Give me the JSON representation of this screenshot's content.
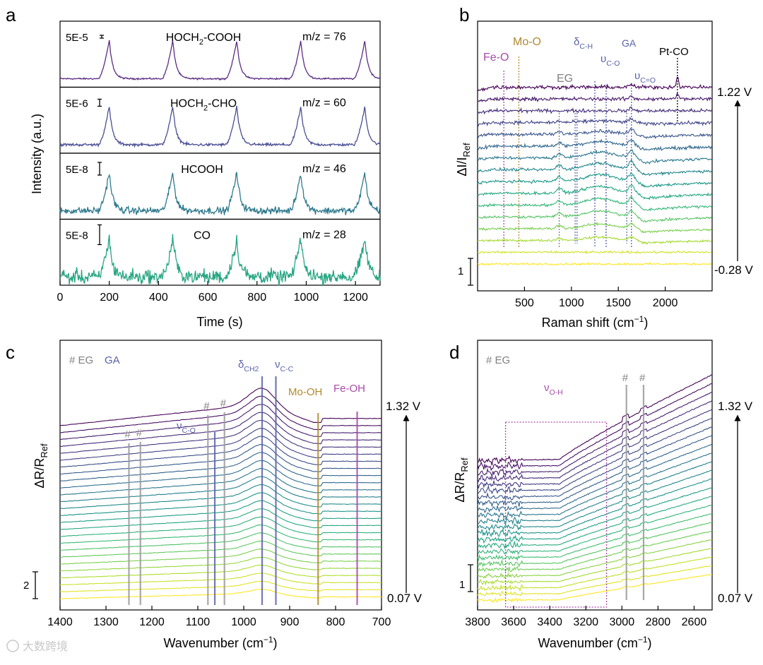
{
  "chart_data": [
    {
      "panel": "a",
      "type": "line",
      "xlabel": "Time (s)",
      "ylabel": "Intensity (a.u.)",
      "xlim": [
        0,
        1300
      ],
      "xticks": [
        0,
        200,
        400,
        600,
        800,
        1000,
        1200
      ],
      "peak_times": [
        200,
        458,
        718,
        978,
        1238
      ],
      "series": [
        {
          "name": "HOCH2-COOH",
          "name_main": "HOCH",
          "name_sub": "2",
          "name_rest": "-COOH",
          "mz": "m/z = 76",
          "scale": "5E-5",
          "color": "#5b2d83",
          "noise": 0.02
        },
        {
          "name": "HOCH2-CHO",
          "name_main": "HOCH",
          "name_sub": "2",
          "name_rest": "-CHO",
          "mz": "m/z = 60",
          "scale": "5E-6",
          "color": "#4a4e93",
          "noise": 0.035
        },
        {
          "name": "HCOOH",
          "name_main": "HCOOH",
          "name_sub": "",
          "name_rest": "",
          "mz": "m/z = 46",
          "scale": "5E-8",
          "color": "#2f7a8e",
          "noise": 0.09
        },
        {
          "name": "CO",
          "name_main": "CO",
          "name_sub": "",
          "name_rest": "",
          "mz": "m/z = 28",
          "scale": "5E-8",
          "color": "#27a582",
          "noise": 0.17
        }
      ]
    },
    {
      "panel": "b",
      "type": "line",
      "xlabel": "Raman shift (cm",
      "xlabel_sup": "−1",
      "xlabel_end": ")",
      "ylabel": "ΔI/I",
      "ylabel_sub": "Ref",
      "xlim": [
        0,
        2500
      ],
      "xticks": [
        500,
        1000,
        1500,
        2000
      ],
      "potential_top": "1.22 V",
      "potential_bottom": "-0.28 V",
      "scale_bar": "1",
      "n_spectra": 16,
      "peaks": [
        {
          "label": "Fe-O",
          "color": "#a64ca6",
          "x": 280
        },
        {
          "label": "Mo-O",
          "color": "#b08a2e",
          "x": 440
        },
        {
          "label": "EG",
          "color": "#808080",
          "x": 870
        },
        {
          "label": "δ",
          "sub": "C-H",
          "color": "#5a62a8",
          "x": 1250
        },
        {
          "label": "GA",
          "color": "#5a62a8",
          "x": 1300
        },
        {
          "label": "υ",
          "sub": "C-O",
          "color": "#5a62a8",
          "x": 1370
        },
        {
          "label": "υ",
          "sub": "C=O",
          "color": "#5a62a8",
          "x": 1640
        },
        {
          "label": "Pt-CO",
          "color": "#000000",
          "x": 2130
        }
      ]
    },
    {
      "panel": "c",
      "type": "line",
      "xlabel": "Wavenumber (cm",
      "xlabel_sup": "−1",
      "xlabel_end": ")",
      "ylabel": "ΔR/R",
      "ylabel_sub": "Ref",
      "xlim": [
        1400,
        700
      ],
      "xticks": [
        1400,
        1300,
        1200,
        1100,
        1000,
        900,
        800,
        700
      ],
      "potential_top": "1.32 V",
      "potential_bottom": "0.07 V",
      "scale_bar": "2",
      "n_spectra": 26,
      "legend": [
        {
          "label": "# EG",
          "color": "#808080"
        },
        {
          "label": "GA",
          "color": "#5a62a8"
        }
      ],
      "peak_lines": [
        {
          "x": 1250,
          "color": "#9a9a9a",
          "label": "#"
        },
        {
          "x": 1225,
          "color": "#9a9a9a",
          "label": "#"
        },
        {
          "x": 1078,
          "color": "#9a9a9a",
          "label": "#"
        },
        {
          "x": 1063,
          "color": "#5a62a8",
          "label": ""
        },
        {
          "x": 1042,
          "color": "#9a9a9a",
          "label": "#"
        },
        {
          "x": 960,
          "color": "#5a62a8",
          "label": ""
        },
        {
          "x": 930,
          "color": "#5a62a8",
          "label": ""
        },
        {
          "x": 838,
          "color": "#b08a2e",
          "label": ""
        },
        {
          "x": 753,
          "color": "#a64ca6",
          "label": ""
        }
      ],
      "annotations": [
        {
          "text": "ν",
          "sub": "C-O",
          "color": "#5a62a8"
        },
        {
          "text": "δ",
          "sub": "CH2",
          "color": "#5a62a8"
        },
        {
          "text": "ν",
          "sub": "C-C",
          "color": "#5a62a8"
        },
        {
          "text": "Mo-OH",
          "color": "#b08a2e"
        },
        {
          "text": "Fe-OH",
          "color": "#a64ca6"
        }
      ]
    },
    {
      "panel": "d",
      "type": "line",
      "xlabel": "Wavenumber (cm",
      "xlabel_sup": "−1",
      "xlabel_end": ")",
      "ylabel": "ΔR/R",
      "ylabel_sub": "Ref",
      "xlim": [
        3800,
        2500
      ],
      "xticks": [
        3800,
        3600,
        3400,
        3200,
        3000,
        2800,
        2600
      ],
      "potential_top": "1.32 V",
      "potential_bottom": "0.07 V",
      "scale_bar": "1",
      "n_spectra": 24,
      "legend": [
        {
          "label": "# EG",
          "color": "#808080"
        }
      ],
      "peak_lines": [
        {
          "x": 2975,
          "color": "#9a9a9a",
          "label": "#"
        },
        {
          "x": 2880,
          "color": "#9a9a9a",
          "label": "#"
        }
      ],
      "box": {
        "x1": 3645,
        "x2": 3085,
        "label": "ν",
        "sub": "O-H",
        "color": "#a64ca6"
      }
    }
  ],
  "panel_letters": [
    "a",
    "b",
    "c",
    "d"
  ],
  "watermark": "大数跨境"
}
